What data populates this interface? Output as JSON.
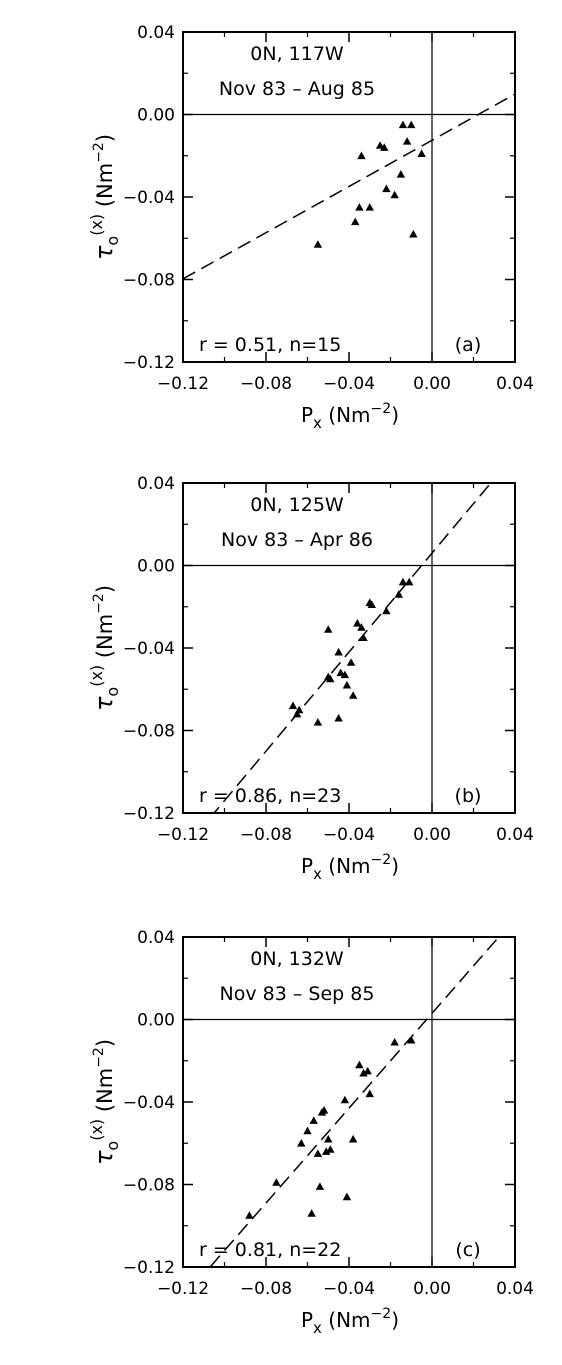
{
  "chart_data": [
    {
      "type": "scatter",
      "panel_label": "(a)",
      "title": "0N, 117W",
      "subtitle": "Nov 83 – Aug 85",
      "stats": "r = 0.51, n=15",
      "xlabel": {
        "main": "P",
        "sub": "x",
        "unit": "(Nm",
        "exp": "−2",
        "close": ")"
      },
      "ylabel": {
        "main": "τ",
        "sub": "o",
        "sup": "(x)",
        "unit": "(Nm",
        "exp": "−2",
        "close": ")"
      },
      "xlim": [
        -0.12,
        0.04
      ],
      "ylim": [
        -0.12,
        0.04
      ],
      "xticks": [
        "−0.12",
        "−0.08",
        "−0.04",
        "0.00",
        "0.04"
      ],
      "yticks": [
        "−0.12",
        "−0.08",
        "−0.04",
        "0.00",
        "0.04"
      ],
      "regression_line": {
        "slope": 0.56,
        "intercept": -0.0125
      },
      "points": [
        {
          "x": -0.055,
          "y": -0.063
        },
        {
          "x": -0.037,
          "y": -0.052
        },
        {
          "x": -0.035,
          "y": -0.045
        },
        {
          "x": -0.03,
          "y": -0.045
        },
        {
          "x": -0.034,
          "y": -0.02
        },
        {
          "x": -0.025,
          "y": -0.015
        },
        {
          "x": -0.023,
          "y": -0.016
        },
        {
          "x": -0.022,
          "y": -0.036
        },
        {
          "x": -0.018,
          "y": -0.039
        },
        {
          "x": -0.015,
          "y": -0.029
        },
        {
          "x": -0.014,
          "y": -0.005
        },
        {
          "x": -0.012,
          "y": -0.013
        },
        {
          "x": -0.01,
          "y": -0.005
        },
        {
          "x": -0.009,
          "y": -0.058
        },
        {
          "x": -0.005,
          "y": -0.019
        }
      ]
    },
    {
      "type": "scatter",
      "panel_label": "(b)",
      "title": "0N, 125W",
      "subtitle": "Nov 83 – Apr 86",
      "stats": "r = 0.86, n=23",
      "xlabel": {
        "main": "P",
        "sub": "x",
        "unit": "(Nm",
        "exp": "−2",
        "close": ")"
      },
      "ylabel": {
        "main": "τ",
        "sub": "o",
        "sup": "(x)",
        "unit": "(Nm",
        "exp": "−2",
        "close": ")"
      },
      "xlim": [
        -0.12,
        0.04
      ],
      "ylim": [
        -0.12,
        0.04
      ],
      "xticks": [
        "−0.12",
        "−0.08",
        "−0.04",
        "0.00",
        "0.04"
      ],
      "yticks": [
        "−0.12",
        "−0.08",
        "−0.04",
        "0.00",
        "0.04"
      ],
      "regression_line": {
        "slope": 1.2,
        "intercept": 0.006
      },
      "points": [
        {
          "x": -0.067,
          "y": -0.068
        },
        {
          "x": -0.065,
          "y": -0.072
        },
        {
          "x": -0.064,
          "y": -0.07
        },
        {
          "x": -0.055,
          "y": -0.076
        },
        {
          "x": -0.05,
          "y": -0.031
        },
        {
          "x": -0.05,
          "y": -0.054
        },
        {
          "x": -0.049,
          "y": -0.055
        },
        {
          "x": -0.045,
          "y": -0.042
        },
        {
          "x": -0.045,
          "y": -0.074
        },
        {
          "x": -0.044,
          "y": -0.052
        },
        {
          "x": -0.042,
          "y": -0.053
        },
        {
          "x": -0.041,
          "y": -0.058
        },
        {
          "x": -0.039,
          "y": -0.047
        },
        {
          "x": -0.038,
          "y": -0.063
        },
        {
          "x": -0.036,
          "y": -0.028
        },
        {
          "x": -0.034,
          "y": -0.03
        },
        {
          "x": -0.033,
          "y": -0.035
        },
        {
          "x": -0.03,
          "y": -0.018
        },
        {
          "x": -0.029,
          "y": -0.019
        },
        {
          "x": -0.022,
          "y": -0.022
        },
        {
          "x": -0.016,
          "y": -0.014
        },
        {
          "x": -0.014,
          "y": -0.008
        },
        {
          "x": -0.011,
          "y": -0.008
        }
      ]
    },
    {
      "type": "scatter",
      "panel_label": "(c)",
      "title": "0N, 132W",
      "subtitle": "Nov 83 – Sep 85",
      "stats": "r = 0.81, n=22",
      "xlabel": {
        "main": "P",
        "sub": "x",
        "unit": "(Nm",
        "exp": "−2",
        "close": ")"
      },
      "ylabel": {
        "main": "τ",
        "sub": "o",
        "sup": "(x)",
        "unit": "(Nm",
        "exp": "−2",
        "close": ")"
      },
      "xlim": [
        -0.12,
        0.04
      ],
      "ylim": [
        -0.12,
        0.04
      ],
      "xticks": [
        "−0.12",
        "−0.08",
        "−0.04",
        "0.00",
        "0.04"
      ],
      "yticks": [
        "−0.12",
        "−0.08",
        "−0.04",
        "0.00",
        "0.04"
      ],
      "regression_line": {
        "slope": 1.15,
        "intercept": 0.003
      },
      "points": [
        {
          "x": -0.088,
          "y": -0.095
        },
        {
          "x": -0.075,
          "y": -0.079
        },
        {
          "x": -0.063,
          "y": -0.06
        },
        {
          "x": -0.06,
          "y": -0.054
        },
        {
          "x": -0.058,
          "y": -0.094
        },
        {
          "x": -0.057,
          "y": -0.049
        },
        {
          "x": -0.055,
          "y": -0.065
        },
        {
          "x": -0.054,
          "y": -0.081
        },
        {
          "x": -0.053,
          "y": -0.045
        },
        {
          "x": -0.052,
          "y": -0.044
        },
        {
          "x": -0.051,
          "y": -0.064
        },
        {
          "x": -0.05,
          "y": -0.058
        },
        {
          "x": -0.049,
          "y": -0.063
        },
        {
          "x": -0.042,
          "y": -0.039
        },
        {
          "x": -0.041,
          "y": -0.086
        },
        {
          "x": -0.038,
          "y": -0.058
        },
        {
          "x": -0.035,
          "y": -0.022
        },
        {
          "x": -0.033,
          "y": -0.026
        },
        {
          "x": -0.031,
          "y": -0.025
        },
        {
          "x": -0.03,
          "y": -0.036
        },
        {
          "x": -0.018,
          "y": -0.011
        },
        {
          "x": -0.01,
          "y": -0.01
        }
      ]
    }
  ]
}
